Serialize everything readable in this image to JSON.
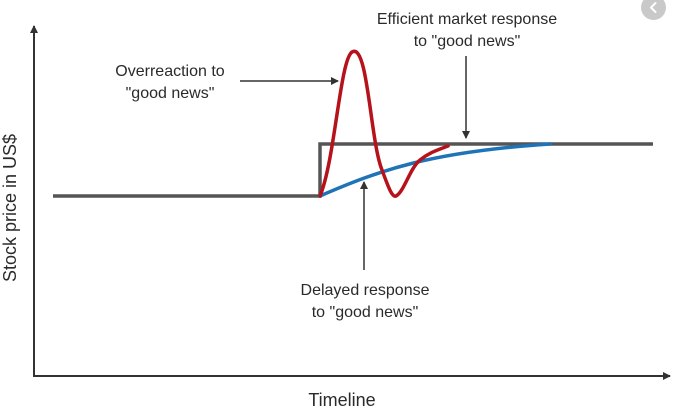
{
  "diagram": {
    "y_axis_label": "Stock price in US$",
    "x_axis_label": "Timeline",
    "annotations": {
      "efficient": {
        "line1": "Efficient market response",
        "line2": "to \"good news\""
      },
      "overreaction": {
        "line1": "Overreaction to",
        "line2": "\"good news\""
      },
      "delayed": {
        "line1": "Delayed response",
        "line2": "to \"good news\""
      }
    },
    "series_colors": {
      "efficient": "#555555",
      "overreaction": "#b5121b",
      "delayed": "#1f73b7",
      "axes": "#333333"
    }
  },
  "controls": {
    "back_icon": "chevron-left-icon"
  }
}
